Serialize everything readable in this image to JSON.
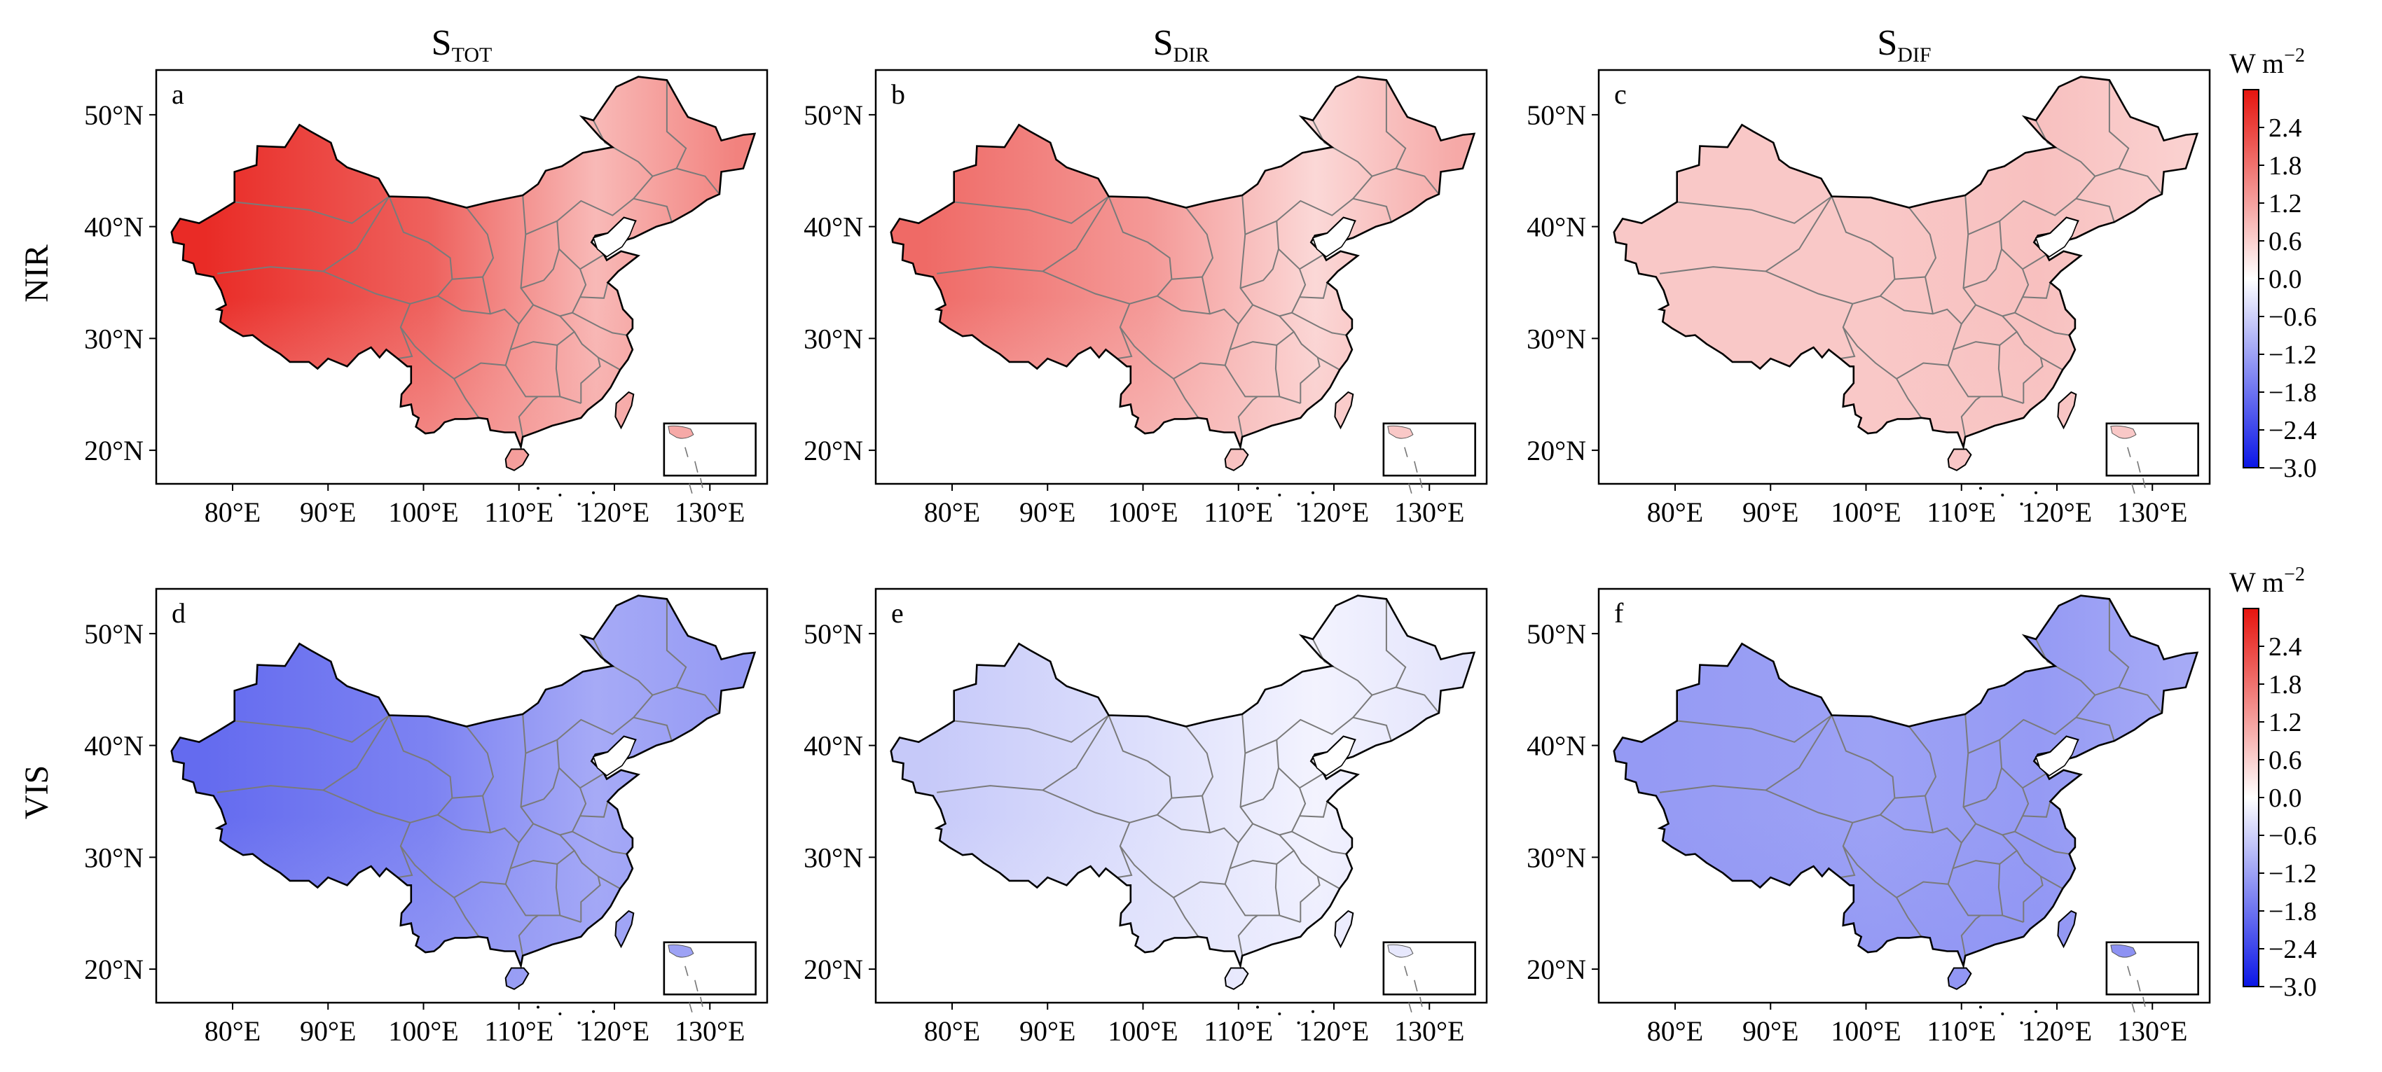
{
  "figure": {
    "column_titles": [
      {
        "base": "S",
        "sub": "TOT"
      },
      {
        "base": "S",
        "sub": "DIR"
      },
      {
        "base": "S",
        "sub": "DIF"
      }
    ],
    "row_labels": [
      "NIR",
      "VIS"
    ],
    "x_ticks": [
      "80°E",
      "90°E",
      "100°E",
      "110°E",
      "120°E",
      "130°E"
    ],
    "y_ticks": [
      "50°N",
      "40°N",
      "30°N",
      "20°N"
    ],
    "colorbar": {
      "unit": "W m",
      "unit_exponent": "−2",
      "ticks": [
        "2.4",
        "1.8",
        "1.2",
        "0.6",
        "0.0",
        "−0.6",
        "−1.2",
        "−1.8",
        "−2.4",
        "−3.0"
      ],
      "vmin": -3.0,
      "vmax": 3.0,
      "colors": {
        "low": "#0b16e6",
        "mid": "#ffffff",
        "high": "#e6140e"
      }
    },
    "panels": [
      {
        "letter": "a",
        "row": 0,
        "col": 0,
        "variable": "S_TOT",
        "band": "NIR",
        "field": {
          "west": 2.7,
          "center": 2.0,
          "east": 0.9,
          "northeast": 1.6,
          "south": 1.1
        }
      },
      {
        "letter": "b",
        "row": 0,
        "col": 1,
        "variable": "S_DIR",
        "band": "NIR",
        "field": {
          "west": 1.9,
          "center": 1.3,
          "east": 0.5,
          "northeast": 1.1,
          "south": 0.7
        }
      },
      {
        "letter": "c",
        "row": 0,
        "col": 2,
        "variable": "S_DIF",
        "band": "NIR",
        "field": {
          "west": 0.7,
          "center": 0.7,
          "east": 0.8,
          "northeast": 0.6,
          "south": 0.7
        }
      },
      {
        "letter": "d",
        "row": 1,
        "col": 0,
        "variable": "S_TOT",
        "band": "VIS",
        "field": {
          "west": -1.9,
          "center": -1.6,
          "east": -1.1,
          "northeast": -1.3,
          "south": -1.2
        }
      },
      {
        "letter": "e",
        "row": 1,
        "col": 1,
        "variable": "S_DIR",
        "band": "VIS",
        "field": {
          "west": -0.7,
          "center": -0.4,
          "east": -0.15,
          "northeast": -0.35,
          "south": -0.3
        }
      },
      {
        "letter": "f",
        "row": 1,
        "col": 2,
        "variable": "S_DIF",
        "band": "VIS",
        "field": {
          "west": -1.3,
          "center": -1.2,
          "east": -1.3,
          "northeast": -1.1,
          "south": -1.4
        }
      }
    ]
  }
}
